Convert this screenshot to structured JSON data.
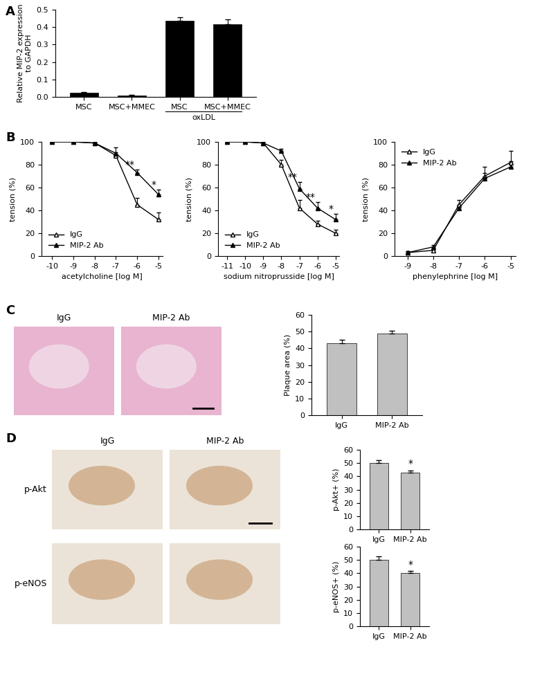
{
  "panel_labels": [
    "A",
    "B",
    "C",
    "D"
  ],
  "images": {
    "C": {
      "columns": [
        "IgG",
        "MIP-2 Ab"
      ]
    },
    "D": {
      "columns": [
        "IgG",
        "MIP-2 Ab"
      ],
      "rows": [
        "p-Akt",
        "p-eNOS"
      ]
    }
  },
  "chart_data": [
    {
      "type": "bar",
      "categories": [
        "MSC",
        "MSC+MMEC",
        "MSC",
        "MSC+MMEC"
      ],
      "values": [
        0.025,
        0.008,
        0.435,
        0.415
      ],
      "errors": [
        0.002,
        0.002,
        0.02,
        0.03
      ],
      "color": "#000000",
      "y_label": "Relative MIP-2 expression\nto GAPDH",
      "ylim": [
        0.0,
        0.5
      ],
      "yticks": [
        0.0,
        0.1,
        0.2,
        0.3,
        0.4,
        0.5
      ],
      "groups": [
        {
          "label": "oxLDL",
          "members": [
            2,
            3
          ]
        }
      ]
    },
    {
      "type": "line",
      "x": [
        -10,
        -9,
        -8,
        -7,
        -6,
        -5
      ],
      "x_label": "acetylcholine [log M]",
      "y_label": "tension (%)",
      "xlim": [
        -10.5,
        -4.8
      ],
      "xticks": [
        -10,
        -9,
        -8,
        -7,
        -6,
        -5
      ],
      "ylim": [
        0,
        100
      ],
      "yticks": [
        0,
        20,
        40,
        60,
        80,
        100
      ],
      "legend": "lower left",
      "series": [
        {
          "name": "IgG",
          "color": "#000000",
          "marker": "triangle_open",
          "values": [
            100,
            100,
            99,
            88,
            45,
            32
          ],
          "errors": [
            0,
            0,
            1,
            3,
            6,
            6
          ]
        },
        {
          "name": "MIP-2 Ab",
          "color": "#000000",
          "marker": "triangle",
          "values": [
            100,
            100,
            99,
            90,
            73,
            54
          ],
          "errors": [
            0,
            0,
            1,
            5,
            3,
            4
          ],
          "significance": [
            null,
            null,
            null,
            null,
            "**",
            "*"
          ]
        }
      ]
    },
    {
      "type": "line",
      "x": [
        -11,
        -10,
        -9,
        -8,
        -7,
        -6,
        -5
      ],
      "x_label": "sodium nitroprusside [log M]",
      "y_label": "tension (%)",
      "xlim": [
        -11.5,
        -4.8
      ],
      "xticks": [
        -11,
        -10,
        -9,
        -8,
        -7,
        -6,
        -5
      ],
      "ylim": [
        0,
        100
      ],
      "yticks": [
        0,
        20,
        40,
        60,
        80,
        100
      ],
      "legend": "lower left",
      "series": [
        {
          "name": "IgG",
          "color": "#000000",
          "marker": "triangle_open",
          "values": [
            100,
            100,
            99,
            80,
            42,
            28,
            20
          ],
          "errors": [
            0,
            0,
            1,
            4,
            7,
            3,
            3
          ]
        },
        {
          "name": "MIP-2 Ab",
          "color": "#000000",
          "marker": "triangle",
          "values": [
            100,
            100,
            99,
            92,
            59,
            42,
            32
          ],
          "errors": [
            0,
            0,
            1,
            2,
            6,
            5,
            5
          ],
          "significance": [
            null,
            null,
            null,
            null,
            "**",
            "**",
            "*"
          ]
        }
      ]
    },
    {
      "type": "line",
      "x": [
        -9,
        -8,
        -7,
        -6,
        -5
      ],
      "x_label": "phenylephrine [log M]",
      "y_label": "tension (%)",
      "xlim": [
        -9.5,
        -4.8
      ],
      "xticks": [
        -9,
        -8,
        -7,
        -6,
        -5
      ],
      "ylim": [
        0,
        100
      ],
      "yticks": [
        0,
        20,
        40,
        60,
        80,
        100
      ],
      "legend": "upper left",
      "series": [
        {
          "name": "IgG",
          "color": "#000000",
          "marker": "triangle_open",
          "values": [
            3,
            5,
            45,
            70,
            82
          ],
          "errors": [
            1,
            1,
            4,
            8,
            10
          ]
        },
        {
          "name": "MIP-2 Ab",
          "color": "#000000",
          "marker": "triangle",
          "values": [
            3,
            8,
            42,
            68,
            78
          ],
          "errors": [
            1,
            2,
            3,
            5,
            5
          ]
        }
      ]
    },
    {
      "type": "bar",
      "categories": [
        "IgG",
        "MIP-2 Ab"
      ],
      "values": [
        43,
        49
      ],
      "errors": [
        2,
        1.5
      ],
      "color": "#c0c0c0",
      "y_label": "Plaque area (%)",
      "ylim": [
        0,
        60
      ],
      "yticks": [
        0,
        10,
        20,
        30,
        40,
        50,
        60
      ]
    },
    {
      "type": "bar",
      "categories": [
        "IgG",
        "MIP-2 Ab"
      ],
      "values": [
        50,
        43
      ],
      "errors": [
        2,
        1.5
      ],
      "color": "#c0c0c0",
      "y_label": "p-Akt+ (%)",
      "ylim": [
        0,
        60
      ],
      "yticks": [
        0,
        10,
        20,
        30,
        40,
        50,
        60
      ],
      "significance": [
        null,
        "*"
      ]
    },
    {
      "type": "bar",
      "categories": [
        "IgG",
        "MIP-2 Ab"
      ],
      "values": [
        50,
        40
      ],
      "errors": [
        2.5,
        1.5
      ],
      "color": "#c0c0c0",
      "y_label": "p-eNOS+ (%)",
      "ylim": [
        0,
        60
      ],
      "yticks": [
        0,
        10,
        20,
        30,
        40,
        50,
        60
      ],
      "significance": [
        null,
        "*"
      ]
    }
  ]
}
